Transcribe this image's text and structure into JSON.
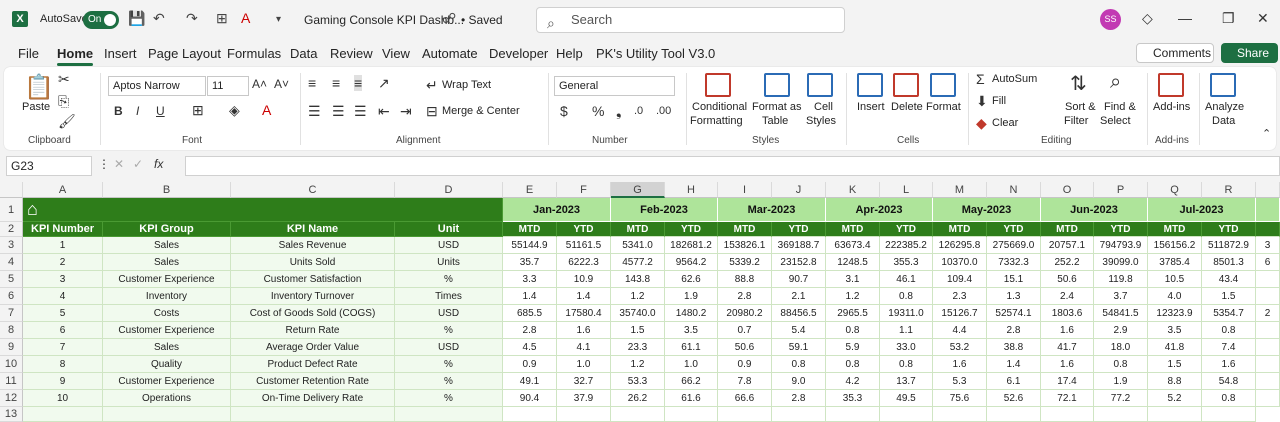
{
  "titlebar": {
    "autosave_label": "AutoSave",
    "autosave_state": "On",
    "doc_title": "Gaming Console KPI Dashb...",
    "saved_status": "• Saved",
    "search_placeholder": "Search",
    "avatar_initials": "SS"
  },
  "menu": {
    "tabs": [
      "File",
      "Home",
      "Insert",
      "Page Layout",
      "Formulas",
      "Data",
      "Review",
      "View",
      "Automate",
      "Developer",
      "Help",
      "PK's Utility Tool V3.0"
    ],
    "active": "Home",
    "comments_label": "Comments",
    "share_label": "Share"
  },
  "ribbon": {
    "paste": "Paste",
    "clipboard": "Clipboard",
    "font_name": "Aptos Narrow",
    "font_size": "11",
    "font": "Font",
    "wrap_text": "Wrap Text",
    "merge_center": "Merge & Center",
    "alignment": "Alignment",
    "number_format": "General",
    "number": "Number",
    "conditional_formatting_1": "Conditional",
    "conditional_formatting_2": "Formatting",
    "format_as_table_1": "Format as",
    "format_as_table_2": "Table",
    "cell_styles_1": "Cell",
    "cell_styles_2": "Styles",
    "styles": "Styles",
    "insert": "Insert",
    "delete": "Delete",
    "format": "Format",
    "cells": "Cells",
    "autosum": "AutoSum",
    "fill": "Fill",
    "clear": "Clear",
    "sort_filter_1": "Sort &",
    "sort_filter_2": "Filter",
    "find_select_1": "Find &",
    "find_select_2": "Select",
    "editing": "Editing",
    "addins": "Add-ins",
    "addins_group": "Add-ins",
    "analyze_data_1": "Analyze",
    "analyze_data_2": "Data"
  },
  "formula_bar": {
    "name_box": "G23",
    "fx": "fx",
    "formula": ""
  },
  "sheet": {
    "columns": [
      "A",
      "B",
      "C",
      "D",
      "E",
      "F",
      "G",
      "H",
      "I",
      "J",
      "K",
      "L",
      "M",
      "N",
      "O",
      "P",
      "Q",
      "R"
    ],
    "selected_column": "G",
    "rows": [
      "1",
      "2",
      "3",
      "4",
      "5",
      "6",
      "7",
      "8",
      "9",
      "10",
      "11",
      "12",
      "13"
    ],
    "headers": [
      "KPI Number",
      "KPI Group",
      "KPI Name",
      "Unit"
    ],
    "months": [
      "Jan-2023",
      "Feb-2023",
      "Mar-2023",
      "Apr-2023",
      "May-2023",
      "Jun-2023",
      "Jul-2023"
    ],
    "mtd": "MTD",
    "ytd": "YTD",
    "kpis": [
      {
        "num": "1",
        "group": "Sales",
        "name": "Sales Revenue",
        "unit": "USD",
        "values": [
          "55144.9",
          "51161.5",
          "5341.0",
          "182681.2",
          "153826.1",
          "369188.7",
          "63673.4",
          "222385.2",
          "126295.8",
          "275669.0",
          "20757.1",
          "794793.9",
          "156156.2",
          "511872.9"
        ],
        "overflow": "3"
      },
      {
        "num": "2",
        "group": "Sales",
        "name": "Units Sold",
        "unit": "Units",
        "values": [
          "35.7",
          "6222.3",
          "4577.2",
          "9564.2",
          "5339.2",
          "23152.8",
          "1248.5",
          "355.3",
          "10370.0",
          "7332.3",
          "252.2",
          "39099.0",
          "3785.4",
          "8501.3"
        ],
        "overflow": "6"
      },
      {
        "num": "3",
        "group": "Customer Experience",
        "name": "Customer Satisfaction",
        "unit": "%",
        "values": [
          "3.3",
          "10.9",
          "143.8",
          "62.6",
          "88.8",
          "90.7",
          "3.1",
          "46.1",
          "109.4",
          "15.1",
          "50.6",
          "119.8",
          "10.5",
          "43.4"
        ],
        "overflow": ""
      },
      {
        "num": "4",
        "group": "Inventory",
        "name": "Inventory Turnover",
        "unit": "Times",
        "values": [
          "1.4",
          "1.4",
          "1.2",
          "1.9",
          "2.8",
          "2.1",
          "1.2",
          "0.8",
          "2.3",
          "1.3",
          "2.4",
          "3.7",
          "4.0",
          "1.5"
        ],
        "overflow": ""
      },
      {
        "num": "5",
        "group": "Costs",
        "name": "Cost of Goods Sold (COGS)",
        "unit": "USD",
        "values": [
          "685.5",
          "17580.4",
          "35740.0",
          "1480.2",
          "20980.2",
          "88456.5",
          "2965.5",
          "19311.0",
          "15126.7",
          "52574.1",
          "1803.6",
          "54841.5",
          "12323.9",
          "5354.7"
        ],
        "overflow": "2"
      },
      {
        "num": "6",
        "group": "Customer Experience",
        "name": "Return Rate",
        "unit": "%",
        "values": [
          "2.8",
          "1.6",
          "1.5",
          "3.5",
          "0.7",
          "5.4",
          "0.8",
          "1.1",
          "4.4",
          "2.8",
          "1.6",
          "2.9",
          "3.5",
          "0.8"
        ],
        "overflow": ""
      },
      {
        "num": "7",
        "group": "Sales",
        "name": "Average Order Value",
        "unit": "USD",
        "values": [
          "4.5",
          "4.1",
          "23.3",
          "61.1",
          "50.6",
          "59.1",
          "5.9",
          "33.0",
          "53.2",
          "38.8",
          "41.7",
          "18.0",
          "41.8",
          "7.4"
        ],
        "overflow": ""
      },
      {
        "num": "8",
        "group": "Quality",
        "name": "Product Defect Rate",
        "unit": "%",
        "values": [
          "0.9",
          "1.0",
          "1.2",
          "1.0",
          "0.9",
          "0.8",
          "0.8",
          "0.8",
          "1.6",
          "1.4",
          "1.6",
          "0.8",
          "1.5",
          "1.6"
        ],
        "overflow": ""
      },
      {
        "num": "9",
        "group": "Customer Experience",
        "name": "Customer Retention Rate",
        "unit": "%",
        "values": [
          "49.1",
          "32.7",
          "53.3",
          "66.2",
          "7.8",
          "9.0",
          "4.2",
          "13.7",
          "5.3",
          "6.1",
          "17.4",
          "1.9",
          "8.8",
          "54.8"
        ],
        "overflow": ""
      },
      {
        "num": "10",
        "group": "Operations",
        "name": "On-Time Delivery Rate",
        "unit": "%",
        "values": [
          "90.4",
          "37.9",
          "26.2",
          "61.6",
          "66.6",
          "2.8",
          "35.3",
          "49.5",
          "75.6",
          "52.6",
          "72.1",
          "77.2",
          "5.2",
          "0.8"
        ],
        "overflow": ""
      }
    ]
  }
}
